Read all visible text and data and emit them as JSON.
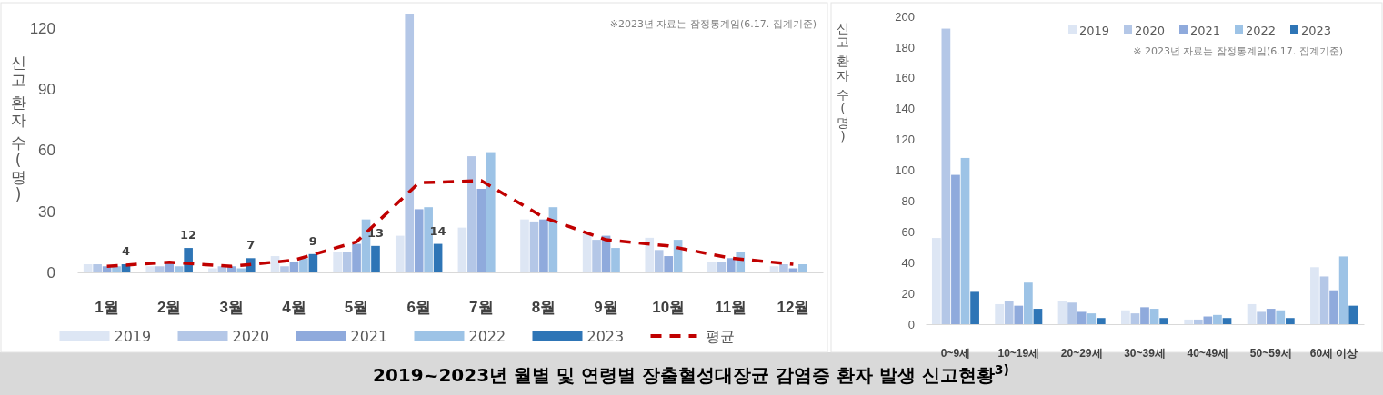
{
  "chart_data": [
    {
      "type": "bar",
      "title": "2019~2023년 월별 및 연령별 장출혈성대장균 감염증 환자 발생 신고현황$^{3)}$",
      "ylabel": "신고 환자 수(명)",
      "annotations": [
        "※2023년 자료는 잠정통계임(6.17. 집계기준)"
      ],
      "categories": [
        "1월",
        "2월",
        "3월",
        "4월",
        "5월",
        "6월",
        "7월",
        "8월",
        "9월",
        "10월",
        "11월",
        "12월"
      ],
      "ylim": [
        0,
        127
      ],
      "yticks": [
        0,
        30,
        60,
        90,
        120
      ],
      "grid": false,
      "legend": "bottom",
      "series": [
        {
          "name": "2019",
          "color": "#dde6f4",
          "values": [
            4,
            3,
            2,
            8,
            10,
            18,
            22,
            26,
            19,
            17,
            5,
            3
          ]
        },
        {
          "name": "2020",
          "color": "#b4c7e7",
          "values": [
            4,
            3,
            3,
            3,
            10,
            127,
            57,
            25,
            16,
            11,
            5,
            4
          ]
        },
        {
          "name": "2021",
          "color": "#8faadc",
          "values": [
            3,
            5,
            3,
            5,
            14,
            31,
            41,
            26,
            18,
            8,
            7,
            2
          ]
        },
        {
          "name": "2022",
          "color": "#9dc3e6",
          "values": [
            3,
            3,
            2,
            7,
            26,
            32,
            59,
            32,
            12,
            16,
            10,
            4
          ]
        },
        {
          "name": "2023",
          "color": "#2e75b6",
          "values": [
            4,
            12,
            7,
            9,
            13,
            14,
            null,
            null,
            null,
            null,
            null,
            null
          ],
          "value_labels": [
            "4",
            "12",
            "7",
            "9",
            "13",
            "14",
            null,
            null,
            null,
            null,
            null,
            null
          ]
        },
        {
          "name": "평균",
          "type": "line",
          "color": "#c00000",
          "line_style": "dashed",
          "marker": "none",
          "values": [
            3,
            5,
            3,
            6,
            15,
            44,
            45,
            27,
            16,
            13,
            7,
            4
          ]
        }
      ]
    },
    {
      "type": "bar",
      "ylabel": "신고 환자 수(명)",
      "annotations": [
        "※ 2023년 자료는 잠정통계임(6.17. 집계기준)"
      ],
      "categories": [
        "0~9세",
        "10~19세",
        "20~29세",
        "30~39세",
        "40~49세",
        "50~59세",
        "60세 이상"
      ],
      "ylim": [
        0,
        200
      ],
      "yticks": [
        0,
        20,
        40,
        60,
        80,
        100,
        120,
        140,
        160,
        180,
        200
      ],
      "grid": false,
      "legend": "top right",
      "series": [
        {
          "name": "2019",
          "color": "#dde6f4",
          "values": [
            56,
            13,
            15,
            9,
            3,
            13,
            37
          ]
        },
        {
          "name": "2020",
          "color": "#b4c7e7",
          "values": [
            192,
            15,
            14,
            7,
            3,
            8,
            31
          ]
        },
        {
          "name": "2021",
          "color": "#8faadc",
          "values": [
            97,
            12,
            8,
            11,
            5,
            10,
            22
          ]
        },
        {
          "name": "2022",
          "color": "#9dc3e6",
          "values": [
            108,
            27,
            7,
            10,
            6,
            9,
            44
          ]
        },
        {
          "name": "2023",
          "color": "#2e75b6",
          "values": [
            21,
            10,
            4,
            4,
            4,
            4,
            12
          ]
        }
      ]
    }
  ]
}
